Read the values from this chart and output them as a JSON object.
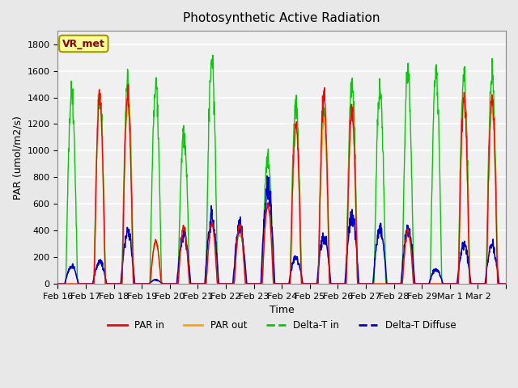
{
  "title": "Photosynthetic Active Radiation",
  "ylabel": "PAR (umol/m2/s)",
  "xlabel": "Time",
  "ylim": [
    0,
    1900
  ],
  "yticks": [
    0,
    200,
    400,
    600,
    800,
    1000,
    1200,
    1400,
    1600,
    1800
  ],
  "date_labels": [
    "Feb 16",
    "Feb 17",
    "Feb 18",
    "Feb 19",
    "Feb 20",
    "Feb 21",
    "Feb 22",
    "Feb 23",
    "Feb 24",
    "Feb 25",
    "Feb 26",
    "Feb 27",
    "Feb 28",
    "Feb 29",
    "Mar 1",
    "Mar 2"
  ],
  "legend_labels": [
    "PAR in",
    "PAR out",
    "Delta-T in",
    "Delta-T Diffuse"
  ],
  "colors": {
    "PAR_in": "#ff0000",
    "PAR_out": "#ffa500",
    "Delta_T_in": "#00cc00",
    "Delta_T_Diffuse": "#0000cc"
  },
  "annotation_text": "VR_met",
  "annotation_color": "#8b0000",
  "annotation_bg": "#ffff99",
  "annotation_border": "#999900",
  "bg_color": "#e8e8e8",
  "plot_bg": "#f0f0f0"
}
